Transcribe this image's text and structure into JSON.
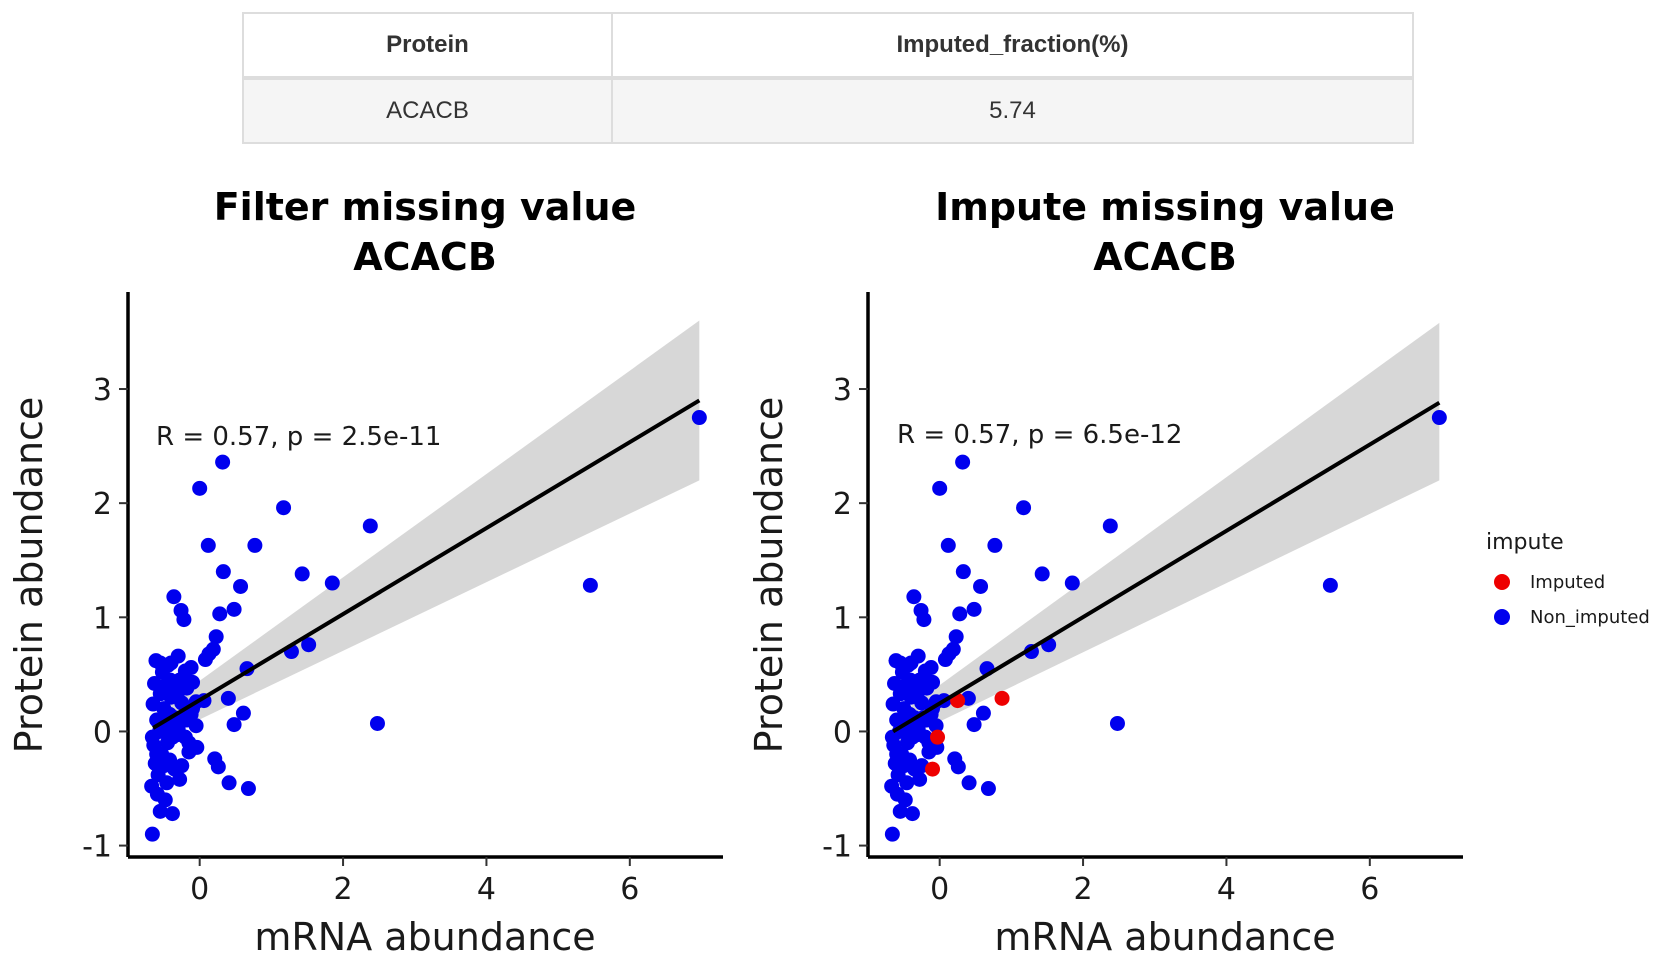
{
  "table": {
    "headers": [
      "Protein",
      "Imputed_fraction(%)"
    ],
    "rows": [
      [
        "ACACB",
        "5.74"
      ]
    ]
  },
  "colors": {
    "non_imputed": "#0000ee",
    "imputed": "#ee0000",
    "fit_line": "#000000",
    "confidence_band": "#bdbdbd"
  },
  "chart_data": [
    {
      "type": "scatter",
      "title": "Filter missing value\nACACB",
      "title_lines": [
        "Filter missing value",
        "ACACB"
      ],
      "xlabel": "mRNA abundance",
      "ylabel": "Protein abundance",
      "xlim": [
        -1.0,
        7.3
      ],
      "ylim": [
        -1.1,
        3.85
      ],
      "xticks": [
        0,
        2,
        4,
        6
      ],
      "yticks": [
        -1,
        0,
        1,
        2,
        3
      ],
      "annotation": "R = 0.57, p = 2.5e-11",
      "grid": false,
      "fit": {
        "x": [
          -0.65,
          6.97
        ],
        "y": [
          0.03,
          2.9
        ]
      },
      "band": {
        "x": [
          -0.65,
          6.97
        ],
        "upper": [
          0.15,
          3.6
        ],
        "lower": [
          -0.09,
          2.2
        ]
      },
      "series": [
        {
          "color": "#0000ee",
          "points": [
            [
              6.97,
              2.75
            ],
            [
              5.45,
              1.28
            ],
            [
              2.48,
              0.07
            ],
            [
              2.38,
              1.8
            ],
            [
              1.85,
              1.3
            ],
            [
              1.52,
              0.76
            ],
            [
              1.43,
              1.38
            ],
            [
              1.28,
              0.7
            ],
            [
              1.17,
              1.96
            ],
            [
              0.77,
              1.63
            ],
            [
              0.68,
              -0.5
            ],
            [
              0.66,
              0.55
            ],
            [
              0.61,
              0.16
            ],
            [
              0.57,
              1.27
            ],
            [
              0.48,
              0.06
            ],
            [
              0.48,
              1.07
            ],
            [
              0.41,
              -0.45
            ],
            [
              0.4,
              0.29
            ],
            [
              0.33,
              1.4
            ],
            [
              0.32,
              2.36
            ],
            [
              0.28,
              1.03
            ],
            [
              0.26,
              -0.31
            ],
            [
              0.23,
              0.83
            ],
            [
              0.21,
              -0.24
            ],
            [
              0.19,
              0.72
            ],
            [
              0.13,
              0.68
            ],
            [
              0.12,
              1.63
            ],
            [
              0.08,
              0.63
            ],
            [
              0.06,
              0.27
            ],
            [
              0.0,
              2.13
            ],
            [
              -0.04,
              -0.14
            ],
            [
              -0.05,
              0.26
            ],
            [
              -0.1,
              0.43
            ],
            [
              -0.12,
              0.56
            ],
            [
              -0.15,
              -0.1
            ],
            [
              -0.18,
              0.38
            ],
            [
              -0.2,
              0.53
            ],
            [
              -0.22,
              0.98
            ],
            [
              -0.25,
              0.25
            ],
            [
              -0.25,
              -0.3
            ],
            [
              -0.23,
              0.12
            ],
            [
              -0.26,
              1.06
            ],
            [
              -0.28,
              -0.42
            ],
            [
              -0.3,
              0.66
            ],
            [
              -0.32,
              -0.03
            ],
            [
              -0.35,
              0.12
            ],
            [
              -0.36,
              1.18
            ],
            [
              -0.38,
              -0.72
            ],
            [
              -0.4,
              0.3
            ],
            [
              -0.41,
              0.45
            ],
            [
              -0.42,
              -0.25
            ],
            [
              -0.44,
              0.58
            ],
            [
              -0.45,
              0.05
            ],
            [
              -0.46,
              -0.45
            ],
            [
              -0.48,
              -0.6
            ],
            [
              -0.5,
              0.2
            ],
            [
              -0.52,
              0.52
            ],
            [
              -0.53,
              -0.2
            ],
            [
              -0.55,
              0.33
            ],
            [
              -0.56,
              0.0
            ],
            [
              -0.58,
              -0.38
            ],
            [
              -0.59,
              -0.55
            ],
            [
              -0.6,
              0.1
            ],
            [
              -0.61,
              0.62
            ],
            [
              -0.62,
              -0.28
            ],
            [
              -0.63,
              0.42
            ],
            [
              -0.64,
              -0.12
            ],
            [
              -0.65,
              0.24
            ],
            [
              -0.66,
              -0.05
            ],
            [
              -0.67,
              -0.48
            ],
            [
              -0.55,
              0.6
            ],
            [
              -0.45,
              -0.1
            ],
            [
              -0.35,
              -0.33
            ],
            [
              -0.3,
              0.35
            ],
            [
              -0.18,
              0.1
            ],
            [
              -0.15,
              -0.18
            ],
            [
              -0.1,
              0.2
            ],
            [
              -0.05,
              0.05
            ],
            [
              -0.5,
              -0.3
            ],
            [
              -0.42,
              0.15
            ],
            [
              -0.6,
              -0.2
            ],
            [
              -0.48,
              0.4
            ],
            [
              -0.38,
              -0.05
            ],
            [
              -0.28,
              0.45
            ],
            [
              -0.66,
              -0.9
            ],
            [
              -0.2,
              -0.05
            ],
            [
              -0.12,
              0.15
            ],
            [
              -0.55,
              -0.7
            ],
            [
              -0.4,
              0.6
            ],
            [
              -0.3,
              0.02
            ]
          ]
        }
      ]
    },
    {
      "type": "scatter",
      "title": "Impute missing value\nACACB",
      "title_lines": [
        "Impute missing value",
        "ACACB"
      ],
      "xlabel": "mRNA abundance",
      "ylabel": "Protein abundance",
      "xlim": [
        -1.0,
        7.3
      ],
      "ylim": [
        -1.1,
        3.85
      ],
      "xticks": [
        0,
        2,
        4,
        6
      ],
      "yticks": [
        -1,
        0,
        1,
        2,
        3
      ],
      "annotation": "R = 0.57, p = 6.5e-12",
      "grid": false,
      "fit": {
        "x": [
          -0.65,
          6.97
        ],
        "y": [
          0.0,
          2.88
        ]
      },
      "band": {
        "x": [
          -0.65,
          6.97
        ],
        "upper": [
          0.11,
          3.58
        ],
        "lower": [
          -0.11,
          2.2
        ]
      },
      "legend": {
        "title": "impute",
        "placement": "right",
        "entries": [
          {
            "label": "Imputed",
            "color": "#ee0000"
          },
          {
            "label": "Non_imputed",
            "color": "#0000ee"
          }
        ]
      },
      "series": [
        {
          "name": "Non_imputed",
          "color": "#0000ee",
          "points": [
            [
              6.97,
              2.75
            ],
            [
              5.45,
              1.28
            ],
            [
              2.48,
              0.07
            ],
            [
              2.38,
              1.8
            ],
            [
              1.85,
              1.3
            ],
            [
              1.52,
              0.76
            ],
            [
              1.43,
              1.38
            ],
            [
              1.28,
              0.7
            ],
            [
              1.17,
              1.96
            ],
            [
              0.77,
              1.63
            ],
            [
              0.68,
              -0.5
            ],
            [
              0.66,
              0.55
            ],
            [
              0.61,
              0.16
            ],
            [
              0.57,
              1.27
            ],
            [
              0.48,
              0.06
            ],
            [
              0.48,
              1.07
            ],
            [
              0.41,
              -0.45
            ],
            [
              0.4,
              0.29
            ],
            [
              0.33,
              1.4
            ],
            [
              0.32,
              2.36
            ],
            [
              0.28,
              1.03
            ],
            [
              0.26,
              -0.31
            ],
            [
              0.23,
              0.83
            ],
            [
              0.21,
              -0.24
            ],
            [
              0.19,
              0.72
            ],
            [
              0.13,
              0.68
            ],
            [
              0.12,
              1.63
            ],
            [
              0.08,
              0.63
            ],
            [
              0.06,
              0.27
            ],
            [
              0.0,
              2.13
            ],
            [
              -0.04,
              -0.14
            ],
            [
              -0.05,
              0.26
            ],
            [
              -0.1,
              0.43
            ],
            [
              -0.12,
              0.56
            ],
            [
              -0.15,
              -0.1
            ],
            [
              -0.18,
              0.38
            ],
            [
              -0.2,
              0.53
            ],
            [
              -0.22,
              0.98
            ],
            [
              -0.25,
              0.25
            ],
            [
              -0.25,
              -0.3
            ],
            [
              -0.23,
              0.12
            ],
            [
              -0.26,
              1.06
            ],
            [
              -0.28,
              -0.42
            ],
            [
              -0.3,
              0.66
            ],
            [
              -0.32,
              -0.03
            ],
            [
              -0.35,
              0.12
            ],
            [
              -0.36,
              1.18
            ],
            [
              -0.38,
              -0.72
            ],
            [
              -0.4,
              0.3
            ],
            [
              -0.41,
              0.45
            ],
            [
              -0.42,
              -0.25
            ],
            [
              -0.44,
              0.58
            ],
            [
              -0.45,
              0.05
            ],
            [
              -0.46,
              -0.45
            ],
            [
              -0.48,
              -0.6
            ],
            [
              -0.5,
              0.2
            ],
            [
              -0.52,
              0.52
            ],
            [
              -0.53,
              -0.2
            ],
            [
              -0.55,
              0.33
            ],
            [
              -0.56,
              0.0
            ],
            [
              -0.58,
              -0.38
            ],
            [
              -0.59,
              -0.55
            ],
            [
              -0.6,
              0.1
            ],
            [
              -0.61,
              0.62
            ],
            [
              -0.62,
              -0.28
            ],
            [
              -0.63,
              0.42
            ],
            [
              -0.64,
              -0.12
            ],
            [
              -0.65,
              0.24
            ],
            [
              -0.66,
              -0.05
            ],
            [
              -0.67,
              -0.48
            ],
            [
              -0.55,
              0.6
            ],
            [
              -0.45,
              -0.1
            ],
            [
              -0.35,
              -0.33
            ],
            [
              -0.3,
              0.35
            ],
            [
              -0.18,
              0.1
            ],
            [
              -0.15,
              -0.18
            ],
            [
              -0.1,
              0.2
            ],
            [
              -0.05,
              0.05
            ],
            [
              -0.5,
              -0.3
            ],
            [
              -0.42,
              0.15
            ],
            [
              -0.6,
              -0.2
            ],
            [
              -0.48,
              0.4
            ],
            [
              -0.38,
              -0.05
            ],
            [
              -0.28,
              0.45
            ],
            [
              -0.66,
              -0.9
            ],
            [
              -0.2,
              -0.05
            ],
            [
              -0.12,
              0.15
            ],
            [
              -0.55,
              -0.7
            ],
            [
              -0.4,
              0.6
            ],
            [
              -0.3,
              0.02
            ]
          ]
        },
        {
          "name": "Imputed",
          "color": "#ee0000",
          "points": [
            [
              0.87,
              0.29
            ],
            [
              0.25,
              0.27
            ],
            [
              -0.03,
              -0.05
            ],
            [
              -0.1,
              -0.33
            ]
          ]
        }
      ]
    }
  ]
}
